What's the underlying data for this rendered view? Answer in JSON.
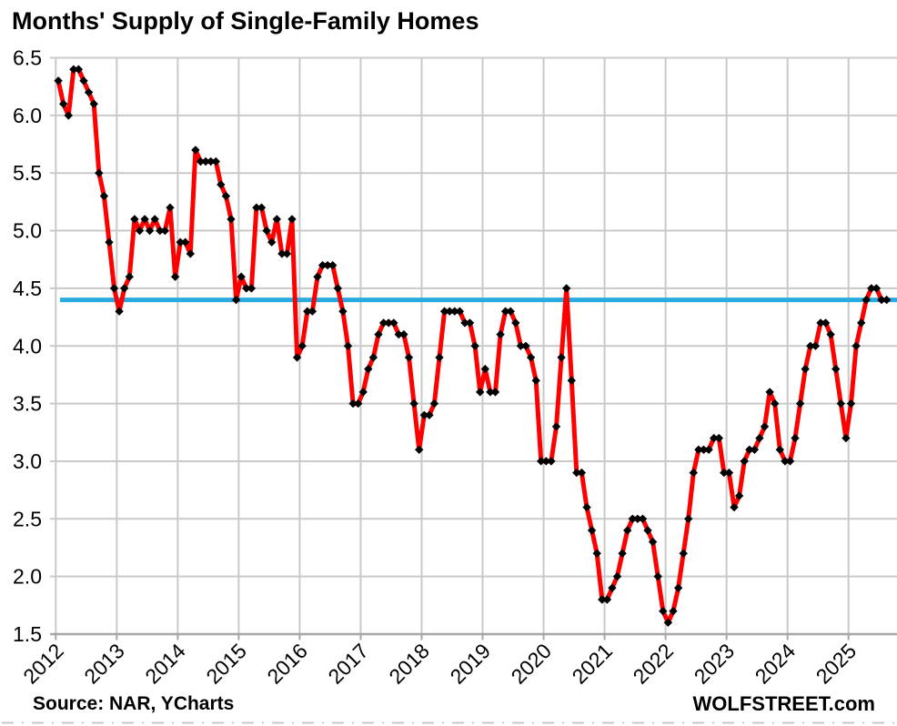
{
  "header": {
    "title": "Months' Supply of Single-Family Homes"
  },
  "footer": {
    "source": "Source: NAR, YCharts",
    "branding": "WOLFSTREET.com"
  },
  "style": {
    "background": "#ffffff",
    "grid_color": "#c9c9c9",
    "axis_color": "#a6a6a6",
    "text_color": "#000000",
    "line_color": "#fe0000",
    "marker_color": "#000000",
    "reference_line_color": "#29aae1"
  },
  "chart_data": {
    "type": "line",
    "title": "Months' Supply of Single-Family Homes",
    "xlabel": "",
    "ylabel": "",
    "unit": "months of supply",
    "grid": true,
    "legend": "none",
    "ylim": [
      1.5,
      6.5
    ],
    "y_tick_step": 0.5,
    "y_tick_labels": [
      "6.5",
      "6.0",
      "5.5",
      "5.0",
      "4.5",
      "4.0",
      "3.5",
      "3.0",
      "2.5",
      "2.0",
      "1.5"
    ],
    "x_tick_labels": [
      "2012",
      "2013",
      "2014",
      "2015",
      "2016",
      "2017",
      "2018",
      "2019",
      "2020",
      "2021",
      "2022",
      "2023",
      "2024",
      "2025"
    ],
    "x_start_month": "2012-01",
    "x_end_month": "2025-08",
    "reference_line": {
      "value": 4.4,
      "color": "#29aae1"
    },
    "series": [
      {
        "name": "Months' supply of single-family homes",
        "line_color": "#fe0000",
        "marker": "black-diamond",
        "monthly_values_by_year": {
          "2012": [
            6.3,
            6.1,
            6.0,
            6.4,
            6.4,
            6.3,
            6.2,
            6.1,
            5.5,
            5.3,
            4.9,
            4.5
          ],
          "2013": [
            4.3,
            4.5,
            4.6,
            5.1,
            5.0,
            5.1,
            5.0,
            5.1,
            5.0,
            5.0,
            5.2,
            4.6
          ],
          "2014": [
            4.9,
            4.9,
            4.8,
            5.7,
            5.6,
            5.6,
            5.6,
            5.6,
            5.4,
            5.3,
            5.1,
            4.4
          ],
          "2015": [
            4.6,
            4.5,
            4.5,
            5.2,
            5.2,
            5.0,
            4.9,
            5.1,
            4.8,
            4.8,
            5.1,
            3.9
          ],
          "2016": [
            4.0,
            4.3,
            4.3,
            4.6,
            4.7,
            4.7,
            4.7,
            4.5,
            4.3,
            4.0,
            3.5,
            3.5
          ],
          "2017": [
            3.6,
            3.8,
            3.9,
            4.1,
            4.2,
            4.2,
            4.2,
            4.1,
            4.1,
            3.9,
            3.5,
            3.1
          ],
          "2018": [
            3.4,
            3.4,
            3.5,
            3.9,
            4.3,
            4.3,
            4.3,
            4.3,
            4.2,
            4.2,
            4.0,
            3.6
          ],
          "2019": [
            3.8,
            3.6,
            3.6,
            4.1,
            4.3,
            4.3,
            4.2,
            4.0,
            4.0,
            3.9,
            3.7,
            3.0
          ],
          "2020": [
            3.0,
            3.0,
            3.3,
            3.9,
            4.5,
            3.7,
            2.9,
            2.9,
            2.6,
            2.4,
            2.2,
            1.8
          ],
          "2021": [
            1.8,
            1.9,
            2.0,
            2.2,
            2.4,
            2.5,
            2.5,
            2.5,
            2.4,
            2.3,
            2.0,
            1.7
          ],
          "2022": [
            1.6,
            1.7,
            1.9,
            2.2,
            2.5,
            2.9,
            3.1,
            3.1,
            3.1,
            3.2,
            3.2,
            2.9
          ],
          "2023": [
            2.9,
            2.6,
            2.7,
            3.0,
            3.1,
            3.1,
            3.2,
            3.3,
            3.6,
            3.5,
            3.1,
            3.0
          ],
          "2024": [
            3.0,
            3.2,
            3.5,
            3.8,
            4.0,
            4.0,
            4.2,
            4.2,
            4.1,
            3.8,
            3.5,
            3.2
          ],
          "2025": [
            3.5,
            4.0,
            4.2,
            4.4,
            4.5,
            4.5,
            4.4,
            4.4
          ]
        }
      }
    ]
  }
}
